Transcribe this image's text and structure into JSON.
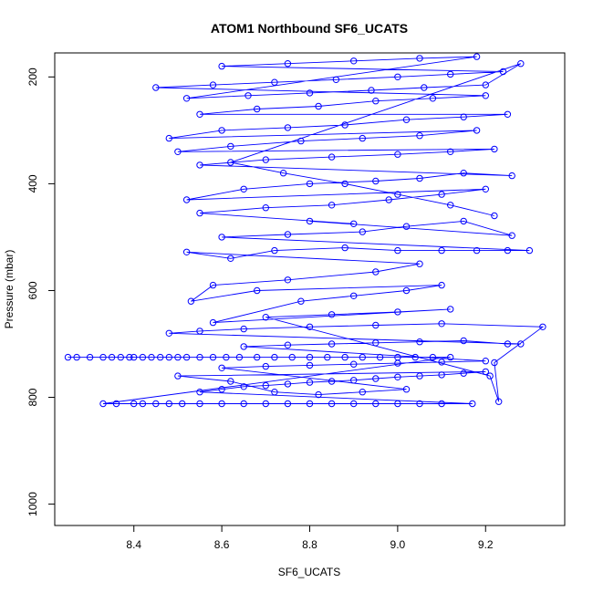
{
  "chart_data": {
    "type": "scatter",
    "title": "ATOM1 Northbound SF6_UCATS",
    "xlabel": "SF6_UCATS",
    "ylabel": "Pressure (mbar)",
    "xlim": [
      8.22,
      9.38
    ],
    "ylim": [
      1040,
      155
    ],
    "y_reversed": true,
    "x_ticks": [
      "8.4",
      "8.6",
      "8.8",
      "9.0",
      "9.2"
    ],
    "y_ticks": [
      "200",
      "400",
      "600",
      "800",
      "1000"
    ],
    "grid": false,
    "legend": "none",
    "series": [
      {
        "style": "points-and-lines",
        "color": "#0000ff",
        "points": [
          [
            8.25,
            725
          ],
          [
            8.27,
            725
          ],
          [
            8.3,
            725
          ],
          [
            8.33,
            725
          ],
          [
            8.35,
            725
          ],
          [
            8.37,
            725
          ],
          [
            8.39,
            725
          ],
          [
            8.4,
            725
          ],
          [
            8.42,
            725
          ],
          [
            8.44,
            725
          ],
          [
            8.46,
            725
          ],
          [
            8.48,
            725
          ],
          [
            8.5,
            725
          ],
          [
            8.52,
            725
          ],
          [
            8.55,
            725
          ],
          [
            8.58,
            725
          ],
          [
            8.61,
            725
          ],
          [
            8.64,
            725
          ],
          [
            8.68,
            725
          ],
          [
            8.72,
            725
          ],
          [
            8.76,
            725
          ],
          [
            8.8,
            725
          ],
          [
            8.84,
            725
          ],
          [
            8.88,
            725
          ],
          [
            8.92,
            725
          ],
          [
            8.96,
            725
          ],
          [
            9.0,
            725
          ],
          [
            9.04,
            725
          ],
          [
            9.08,
            725
          ],
          [
            9.12,
            725
          ],
          [
            8.33,
            812
          ],
          [
            8.36,
            812
          ],
          [
            8.4,
            812
          ],
          [
            8.42,
            812
          ],
          [
            8.45,
            812
          ],
          [
            8.48,
            812
          ],
          [
            8.51,
            812
          ],
          [
            8.55,
            812
          ],
          [
            8.6,
            812
          ],
          [
            8.65,
            812
          ],
          [
            8.7,
            812
          ],
          [
            8.75,
            812
          ],
          [
            8.8,
            812
          ],
          [
            8.85,
            812
          ],
          [
            8.9,
            812
          ],
          [
            8.95,
            812
          ],
          [
            9.0,
            812
          ],
          [
            9.05,
            812
          ],
          [
            9.1,
            812
          ],
          [
            9.17,
            812
          ],
          [
            8.55,
            790
          ],
          [
            8.6,
            785
          ],
          [
            8.65,
            780
          ],
          [
            8.7,
            778
          ],
          [
            8.75,
            775
          ],
          [
            8.8,
            772
          ],
          [
            8.85,
            770
          ],
          [
            8.9,
            768
          ],
          [
            8.95,
            765
          ],
          [
            9.0,
            762
          ],
          [
            9.05,
            760
          ],
          [
            9.1,
            758
          ],
          [
            9.15,
            755
          ],
          [
            9.2,
            752
          ],
          [
            8.5,
            760
          ],
          [
            8.62,
            770
          ],
          [
            8.72,
            790
          ],
          [
            8.82,
            795
          ],
          [
            8.92,
            790
          ],
          [
            9.02,
            785
          ],
          [
            8.6,
            745
          ],
          [
            8.7,
            742
          ],
          [
            8.8,
            740
          ],
          [
            8.9,
            738
          ],
          [
            9.0,
            736
          ],
          [
            9.1,
            734
          ],
          [
            9.2,
            732
          ],
          [
            8.65,
            705
          ],
          [
            8.75,
            702
          ],
          [
            8.85,
            700
          ],
          [
            8.95,
            698
          ],
          [
            9.05,
            696
          ],
          [
            9.15,
            694
          ],
          [
            9.25,
            700
          ],
          [
            9.28,
            700
          ],
          [
            8.48,
            680
          ],
          [
            8.55,
            676
          ],
          [
            8.65,
            672
          ],
          [
            8.8,
            668
          ],
          [
            8.95,
            665
          ],
          [
            9.1,
            662
          ],
          [
            9.33,
            668
          ],
          [
            9.22,
            735
          ],
          [
            9.23,
            808
          ],
          [
            9.21,
            760
          ],
          [
            8.7,
            650
          ],
          [
            8.85,
            645
          ],
          [
            9.0,
            640
          ],
          [
            9.12,
            635
          ],
          [
            8.58,
            660
          ],
          [
            8.78,
            620
          ],
          [
            8.9,
            610
          ],
          [
            9.02,
            600
          ],
          [
            9.1,
            590
          ],
          [
            8.68,
            600
          ],
          [
            8.53,
            620
          ],
          [
            8.58,
            590
          ],
          [
            8.75,
            580
          ],
          [
            8.95,
            565
          ],
          [
            9.05,
            550
          ],
          [
            8.52,
            528
          ],
          [
            8.62,
            540
          ],
          [
            8.72,
            525
          ],
          [
            8.88,
            520
          ],
          [
            9.0,
            525
          ],
          [
            9.1,
            525
          ],
          [
            9.18,
            525
          ],
          [
            9.25,
            525
          ],
          [
            9.3,
            525
          ],
          [
            8.6,
            500
          ],
          [
            8.75,
            495
          ],
          [
            8.92,
            490
          ],
          [
            9.02,
            480
          ],
          [
            9.15,
            470
          ],
          [
            9.26,
            497
          ],
          [
            8.8,
            470
          ],
          [
            8.9,
            475
          ],
          [
            8.55,
            455
          ],
          [
            8.7,
            445
          ],
          [
            8.85,
            440
          ],
          [
            8.98,
            430
          ],
          [
            9.1,
            420
          ],
          [
            9.2,
            410
          ],
          [
            8.52,
            430
          ],
          [
            8.65,
            410
          ],
          [
            8.8,
            400
          ],
          [
            8.95,
            395
          ],
          [
            9.05,
            390
          ],
          [
            9.15,
            380
          ],
          [
            9.26,
            385
          ],
          [
            8.55,
            365
          ],
          [
            8.7,
            355
          ],
          [
            8.85,
            350
          ],
          [
            9.0,
            345
          ],
          [
            9.12,
            340
          ],
          [
            9.22,
            335
          ],
          [
            8.5,
            340
          ],
          [
            8.62,
            330
          ],
          [
            8.78,
            320
          ],
          [
            8.92,
            315
          ],
          [
            9.05,
            310
          ],
          [
            9.18,
            300
          ],
          [
            8.48,
            315
          ],
          [
            8.6,
            300
          ],
          [
            8.75,
            295
          ],
          [
            8.88,
            290
          ],
          [
            9.02,
            280
          ],
          [
            9.15,
            275
          ],
          [
            9.25,
            270
          ],
          [
            8.55,
            270
          ],
          [
            8.68,
            260
          ],
          [
            8.82,
            255
          ],
          [
            8.95,
            245
          ],
          [
            9.08,
            240
          ],
          [
            9.2,
            235
          ],
          [
            8.45,
            220
          ],
          [
            8.58,
            215
          ],
          [
            8.72,
            210
          ],
          [
            8.86,
            205
          ],
          [
            9.0,
            200
          ],
          [
            9.12,
            195
          ],
          [
            9.24,
            190
          ],
          [
            8.6,
            180
          ],
          [
            8.75,
            175
          ],
          [
            8.9,
            170
          ],
          [
            9.05,
            165
          ],
          [
            9.18,
            162
          ],
          [
            8.52,
            240
          ],
          [
            8.66,
            235
          ],
          [
            8.8,
            230
          ],
          [
            8.94,
            225
          ],
          [
            9.06,
            220
          ],
          [
            9.2,
            215
          ],
          [
            9.28,
            175
          ],
          [
            8.62,
            360
          ],
          [
            8.74,
            380
          ],
          [
            8.88,
            400
          ],
          [
            9.0,
            420
          ],
          [
            9.12,
            440
          ],
          [
            9.22,
            460
          ]
        ]
      }
    ]
  }
}
